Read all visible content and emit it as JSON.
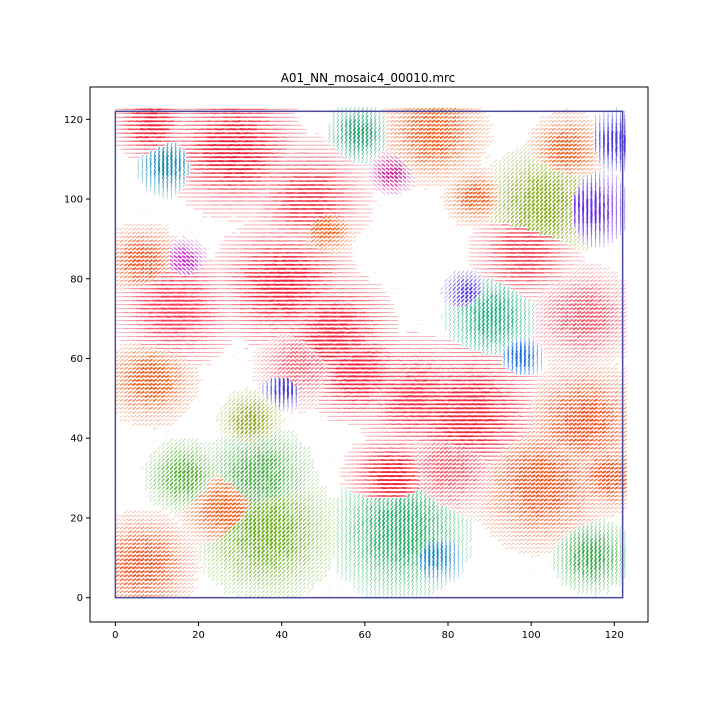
{
  "chart_data": {
    "type": "scatter",
    "title": "A01_NN_mosaic4_00010.mrc",
    "xlabel": "",
    "ylabel": "",
    "xlim": [
      -6.1,
      128.1
    ],
    "ylim": [
      -6.1,
      128.1
    ],
    "x_ticks": [
      0,
      20,
      40,
      60,
      80,
      100,
      120
    ],
    "y_ticks": [
      0,
      20,
      40,
      60,
      80,
      100,
      120
    ],
    "grid": false,
    "boundary_box": {
      "x0": 0,
      "y0": 0,
      "x1": 122,
      "y1": 122,
      "color": "#4b4b9e"
    },
    "field": {
      "x_range": [
        0,
        122
      ],
      "y_range": [
        0,
        122
      ],
      "step": 1,
      "mark": "short line segment; color encodes orientation"
    },
    "regions": [
      {
        "x": 52,
        "y": 66,
        "r": 8,
        "color": "#f0283c"
      },
      {
        "x": 40,
        "y": 78,
        "r": 9,
        "color": "#f0283c"
      },
      {
        "x": 58,
        "y": 56,
        "r": 7,
        "color": "#f0283c"
      },
      {
        "x": 72,
        "y": 50,
        "r": 8,
        "color": "#f03545"
      },
      {
        "x": 84,
        "y": 46,
        "r": 10,
        "color": "#f0283c"
      },
      {
        "x": 28,
        "y": 112,
        "r": 9,
        "color": "#f0283c"
      },
      {
        "x": 14,
        "y": 72,
        "r": 8,
        "color": "#f5405a"
      },
      {
        "x": 46,
        "y": 100,
        "r": 8,
        "color": "#f04e5e"
      },
      {
        "x": 98,
        "y": 86,
        "r": 7,
        "color": "#f04e5e"
      },
      {
        "x": 66,
        "y": 30,
        "r": 6,
        "color": "#f0283c"
      },
      {
        "x": 8,
        "y": 118,
        "r": 5,
        "color": "#f0283c"
      },
      {
        "x": 112,
        "y": 70,
        "r": 7,
        "color": "#f06070"
      },
      {
        "x": 44,
        "y": 58,
        "r": 6,
        "color": "#f57080"
      },
      {
        "x": 80,
        "y": 32,
        "r": 7,
        "color": "#f06a78"
      },
      {
        "x": 112,
        "y": 44,
        "r": 8,
        "color": "#f55528"
      },
      {
        "x": 102,
        "y": 28,
        "r": 9,
        "color": "#f05a28"
      },
      {
        "x": 6,
        "y": 8,
        "r": 7,
        "color": "#f05a28"
      },
      {
        "x": 8,
        "y": 54,
        "r": 6,
        "color": "#f06424"
      },
      {
        "x": 6,
        "y": 84,
        "r": 5,
        "color": "#f05a28"
      },
      {
        "x": 76,
        "y": 116,
        "r": 7,
        "color": "#f06424"
      },
      {
        "x": 26,
        "y": 22,
        "r": 6,
        "color": "#f06424"
      },
      {
        "x": 118,
        "y": 30,
        "r": 5,
        "color": "#f05a28"
      },
      {
        "x": 108,
        "y": 112,
        "r": 5,
        "color": "#f06424"
      },
      {
        "x": 50,
        "y": 92,
        "r": 4,
        "color": "#f06424"
      },
      {
        "x": 86,
        "y": 100,
        "r": 4,
        "color": "#f06424"
      },
      {
        "x": 102,
        "y": 98,
        "r": 8,
        "color": "#8cab1e"
      },
      {
        "x": 36,
        "y": 16,
        "r": 9,
        "color": "#6bb01e"
      },
      {
        "x": 34,
        "y": 30,
        "r": 7,
        "color": "#4cb04a"
      },
      {
        "x": 68,
        "y": 16,
        "r": 9,
        "color": "#2cb26a"
      },
      {
        "x": 90,
        "y": 70,
        "r": 6,
        "color": "#22b080"
      },
      {
        "x": 16,
        "y": 30,
        "r": 5,
        "color": "#5ab43a"
      },
      {
        "x": 114,
        "y": 10,
        "r": 5,
        "color": "#3aab4a"
      },
      {
        "x": 32,
        "y": 44,
        "r": 4,
        "color": "#8fa820"
      },
      {
        "x": 58,
        "y": 116,
        "r": 4,
        "color": "#22a070"
      },
      {
        "x": 76,
        "y": 10,
        "r": 4,
        "color": "#1a8cc8"
      },
      {
        "x": 12,
        "y": 108,
        "r": 4,
        "color": "#1a8cb4"
      },
      {
        "x": 114,
        "y": 97,
        "r": 5,
        "color": "#6a28e8"
      },
      {
        "x": 120,
        "y": 114,
        "r": 4,
        "color": "#4a38e0"
      },
      {
        "x": 40,
        "y": 52,
        "r": 3,
        "color": "#4a3ce0"
      },
      {
        "x": 97,
        "y": 60,
        "r": 3,
        "color": "#1a6ee0"
      },
      {
        "x": 84,
        "y": 76,
        "r": 3,
        "color": "#5a3ce0"
      },
      {
        "x": 16,
        "y": 84,
        "r": 3,
        "color": "#c828c8"
      },
      {
        "x": 66,
        "y": 106,
        "r": 3,
        "color": "#d0289a"
      }
    ]
  }
}
